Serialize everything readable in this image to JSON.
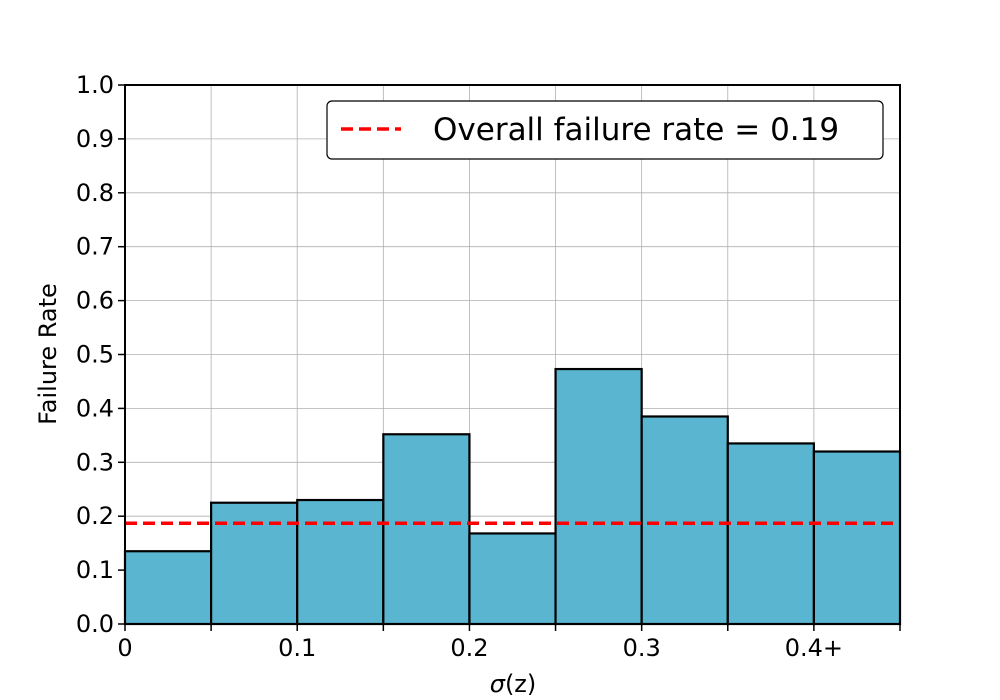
{
  "chart_data": {
    "type": "bar",
    "xlabel_symbol": "σ",
    "xlabel_rest": "(z)",
    "ylabel": "Failure Rate",
    "xlim": [
      0,
      0.45
    ],
    "ylim": [
      0,
      1.0
    ],
    "bin_width": 0.05,
    "x_bin_starts": [
      0.0,
      0.05,
      0.1,
      0.15,
      0.2,
      0.25,
      0.3,
      0.35,
      0.4
    ],
    "values": [
      0.135,
      0.225,
      0.23,
      0.352,
      0.168,
      0.473,
      0.385,
      0.335,
      0.32
    ],
    "x_tick_values": [
      0,
      0.1,
      0.2,
      0.3,
      0.4
    ],
    "x_tick_labels": [
      "0",
      "0.1",
      "0.2",
      "0.3",
      "0.4+"
    ],
    "y_tick_values": [
      0.0,
      0.1,
      0.2,
      0.3,
      0.4,
      0.5,
      0.6,
      0.7,
      0.8,
      0.9,
      1.0
    ],
    "y_tick_labels": [
      "0.0",
      "0.1",
      "0.2",
      "0.3",
      "0.4",
      "0.5",
      "0.6",
      "0.7",
      "0.8",
      "0.9",
      "1.0"
    ],
    "grid": true,
    "bar_color": "#5ab6d0",
    "bar_edge_color": "#000000",
    "overall_rate": 0.187,
    "overall_line_color": "#ff0000",
    "legend": {
      "placement": "top-right",
      "label": "Overall failure rate = 0.19"
    }
  }
}
